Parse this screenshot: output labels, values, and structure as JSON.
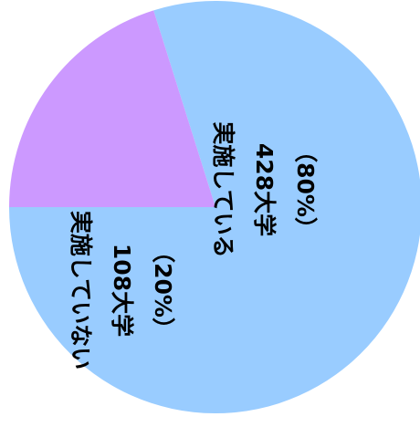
{
  "chart_data": {
    "type": "pie",
    "slices": [
      {
        "label": "実施している",
        "count_label": "428大学",
        "pct_label": "（80%）",
        "value": 428,
        "percent": 80,
        "color": "#99ccff"
      },
      {
        "label": "実施していない",
        "count_label": "108大学",
        "pct_label": "（20%）",
        "value": 108,
        "percent": 20,
        "color": "#cc99ff"
      }
    ],
    "label_orientation": "vertical"
  }
}
